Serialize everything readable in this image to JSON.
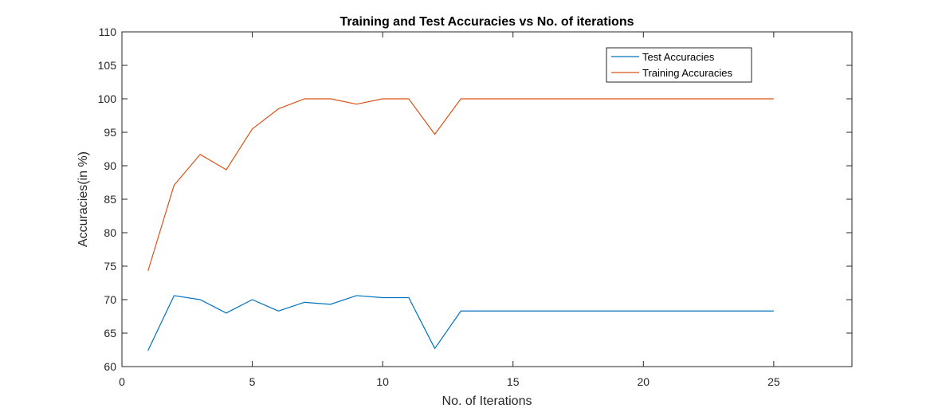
{
  "chart_data": {
    "type": "line",
    "title": "Training and Test Accuracies vs No. of iterations",
    "xlabel": "No. of Iterations",
    "ylabel": "Accuracies(in %)",
    "xlim": [
      0,
      28
    ],
    "ylim": [
      60,
      110
    ],
    "xticks": [
      0,
      5,
      10,
      15,
      20,
      25
    ],
    "yticks": [
      60,
      65,
      70,
      75,
      80,
      85,
      90,
      95,
      100,
      105,
      110
    ],
    "grid": false,
    "legend_position": "top-right",
    "x": [
      1,
      2,
      3,
      4,
      5,
      6,
      7,
      8,
      9,
      10,
      11,
      12,
      13,
      14,
      15,
      16,
      17,
      18,
      19,
      20,
      21,
      22,
      23,
      24,
      25
    ],
    "series": [
      {
        "name": "Test Accuracies",
        "color": "#0072bd",
        "values": [
          62.4,
          70.6,
          70.0,
          68.0,
          70.0,
          68.3,
          69.6,
          69.3,
          70.6,
          70.3,
          70.3,
          62.7,
          68.3,
          68.3,
          68.3,
          68.3,
          68.3,
          68.3,
          68.3,
          68.3,
          68.3,
          68.3,
          68.3,
          68.3,
          68.3
        ]
      },
      {
        "name": "Training Accuracies",
        "color": "#d95319",
        "values": [
          74.3,
          87.1,
          91.7,
          89.4,
          95.5,
          98.5,
          100,
          100,
          99.2,
          100,
          100,
          94.7,
          100,
          100,
          100,
          100,
          100,
          100,
          100,
          100,
          100,
          100,
          100,
          100,
          100
        ]
      }
    ]
  }
}
